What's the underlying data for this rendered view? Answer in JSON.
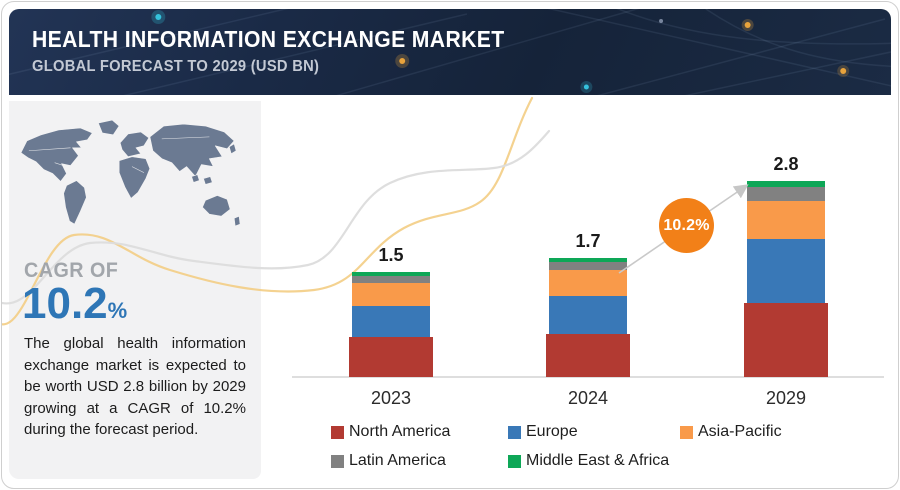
{
  "header": {
    "title": "HEALTH INFORMATION EXCHANGE MARKET",
    "subtitle": "GLOBAL FORECAST TO 2029 (USD BN)"
  },
  "panel": {
    "cagr_label": "CAGR OF",
    "cagr_value": "10.2",
    "cagr_unit": "%",
    "description": "The global health information exchange market is expected to be worth USD 2.8 billion by 2029 growing at a CAGR of 10.2% during the forecast period."
  },
  "chart_data": {
    "type": "bar",
    "stacked": true,
    "unit": "USD BN",
    "categories": [
      "2023",
      "2024",
      "2029"
    ],
    "totals": [
      "1.5",
      "1.7",
      "2.8"
    ],
    "series": [
      {
        "name": "North America",
        "color": "#b23a32",
        "values": [
          0.57,
          0.62,
          1.06
        ]
      },
      {
        "name": "Europe",
        "color": "#3978b7",
        "values": [
          0.45,
          0.54,
          0.91
        ]
      },
      {
        "name": "Asia-Pacific",
        "color": "#f99a4a",
        "values": [
          0.33,
          0.37,
          0.55
        ]
      },
      {
        "name": "Latin America",
        "color": "#818181",
        "values": [
          0.1,
          0.11,
          0.2
        ]
      },
      {
        "name": "Middle East & Africa",
        "color": "#0ea757",
        "values": [
          0.05,
          0.06,
          0.08
        ]
      }
    ],
    "growth_badge": "10.2%",
    "ylim": [
      0,
      3
    ],
    "y_axis_visible": false,
    "grid": false,
    "legend_position": "bottom"
  }
}
